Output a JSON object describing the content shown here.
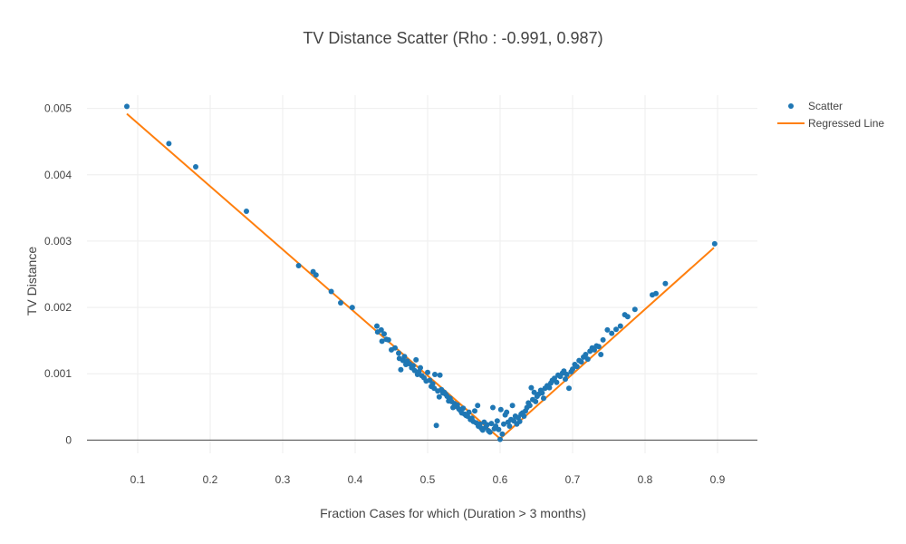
{
  "chart_data": {
    "type": "scatter",
    "title": "TV Distance Scatter  (Rho : -0.991, 0.987)",
    "xlabel": "Fraction Cases for which (Duration > 3 months)",
    "ylabel": "TV Distance",
    "xlim": [
      0.03,
      0.955
    ],
    "ylim": [
      -0.0002,
      0.0052
    ],
    "xticks": [
      0.1,
      0.2,
      0.3,
      0.4,
      0.5,
      0.6,
      0.7,
      0.8,
      0.9
    ],
    "xtick_labels": [
      "0.1",
      "0.2",
      "0.3",
      "0.4",
      "0.5",
      "0.6",
      "0.7",
      "0.8",
      "0.9"
    ],
    "yticks": [
      0,
      0.001,
      0.002,
      0.003,
      0.004,
      0.005
    ],
    "ytick_labels": [
      "0",
      "0.001",
      "0.002",
      "0.003",
      "0.004",
      "0.005"
    ],
    "grid": true,
    "legend_position": "top-right",
    "series": [
      {
        "name": "Scatter",
        "type": "scatter",
        "color": "#1f77b4",
        "points": [
          [
            0.085,
            0.00503
          ],
          [
            0.143,
            0.00447
          ],
          [
            0.18,
            0.00412
          ],
          [
            0.25,
            0.00345
          ],
          [
            0.322,
            0.00263
          ],
          [
            0.342,
            0.00254
          ],
          [
            0.346,
            0.00249
          ],
          [
            0.367,
            0.00224
          ],
          [
            0.38,
            0.00207
          ],
          [
            0.396,
            0.002
          ],
          [
            0.43,
            0.00172
          ],
          [
            0.431,
            0.00163
          ],
          [
            0.436,
            0.00166
          ],
          [
            0.437,
            0.00149
          ],
          [
            0.44,
            0.0016
          ],
          [
            0.443,
            0.00152
          ],
          [
            0.446,
            0.00151
          ],
          [
            0.45,
            0.00136
          ],
          [
            0.455,
            0.00139
          ],
          [
            0.46,
            0.00131
          ],
          [
            0.461,
            0.00123
          ],
          [
            0.463,
            0.00106
          ],
          [
            0.466,
            0.0012
          ],
          [
            0.468,
            0.00126
          ],
          [
            0.47,
            0.00114
          ],
          [
            0.472,
            0.00119
          ],
          [
            0.475,
            0.00115
          ],
          [
            0.478,
            0.00109
          ],
          [
            0.48,
            0.00112
          ],
          [
            0.482,
            0.00105
          ],
          [
            0.484,
            0.00121
          ],
          [
            0.486,
            0.00099
          ],
          [
            0.488,
            0.00103
          ],
          [
            0.49,
            0.00109
          ],
          [
            0.492,
            0.00097
          ],
          [
            0.495,
            0.00094
          ],
          [
            0.498,
            0.00089
          ],
          [
            0.5,
            0.00102
          ],
          [
            0.503,
            0.0009
          ],
          [
            0.505,
            0.00081
          ],
          [
            0.507,
            0.00085
          ],
          [
            0.509,
            0.00078
          ],
          [
            0.51,
            0.00099
          ],
          [
            0.512,
            0.00022
          ],
          [
            0.514,
            0.00074
          ],
          [
            0.516,
            0.00065
          ],
          [
            0.517,
            0.00098
          ],
          [
            0.519,
            0.00076
          ],
          [
            0.521,
            0.00071
          ],
          [
            0.523,
            0.00072
          ],
          [
            0.525,
            0.00069
          ],
          [
            0.527,
            0.00066
          ],
          [
            0.529,
            0.00059
          ],
          [
            0.531,
            0.00063
          ],
          [
            0.533,
            0.00058
          ],
          [
            0.535,
            0.00049
          ],
          [
            0.537,
            0.00055
          ],
          [
            0.539,
            0.00051
          ],
          [
            0.541,
            0.00053
          ],
          [
            0.543,
            0.00047
          ],
          [
            0.545,
            0.00045
          ],
          [
            0.547,
            0.00041
          ],
          [
            0.549,
            0.00048
          ],
          [
            0.551,
            0.00039
          ],
          [
            0.553,
            0.00037
          ],
          [
            0.555,
            0.00036
          ],
          [
            0.557,
            0.00042
          ],
          [
            0.559,
            0.00031
          ],
          [
            0.561,
            0.00033
          ],
          [
            0.563,
            0.00028
          ],
          [
            0.565,
            0.00044
          ],
          [
            0.567,
            0.00026
          ],
          [
            0.569,
            0.00052
          ],
          [
            0.57,
            0.00021
          ],
          [
            0.572,
            0.00024
          ],
          [
            0.574,
            0.00018
          ],
          [
            0.576,
            0.00015
          ],
          [
            0.578,
            0.00027
          ],
          [
            0.58,
            0.00019
          ],
          [
            0.582,
            0.00023
          ],
          [
            0.584,
            0.00014
          ],
          [
            0.586,
            0.00012
          ],
          [
            0.588,
            0.00025
          ],
          [
            0.59,
            0.00049
          ],
          [
            0.592,
            0.00017
          ],
          [
            0.594,
            0.00021
          ],
          [
            0.596,
            0.00029
          ],
          [
            0.598,
            0.00016
          ],
          [
            0.6,
            1e-05
          ],
          [
            0.601,
            0.00046
          ],
          [
            0.603,
            9e-05
          ],
          [
            0.605,
            0.00024
          ],
          [
            0.607,
            0.00038
          ],
          [
            0.609,
            0.00042
          ],
          [
            0.611,
            0.00027
          ],
          [
            0.613,
            0.00021
          ],
          [
            0.615,
            0.00031
          ],
          [
            0.617,
            0.00052
          ],
          [
            0.619,
            0.00029
          ],
          [
            0.621,
            0.00036
          ],
          [
            0.623,
            0.00024
          ],
          [
            0.625,
            0.00034
          ],
          [
            0.627,
            0.00028
          ],
          [
            0.629,
            0.00039
          ],
          [
            0.631,
            0.00041
          ],
          [
            0.633,
            0.00036
          ],
          [
            0.635,
            0.00044
          ],
          [
            0.637,
            0.00049
          ],
          [
            0.639,
            0.00056
          ],
          [
            0.641,
            0.00052
          ],
          [
            0.643,
            0.00079
          ],
          [
            0.645,
            0.00061
          ],
          [
            0.647,
            0.00072
          ],
          [
            0.649,
            0.00058
          ],
          [
            0.651,
            0.00066
          ],
          [
            0.653,
            0.00069
          ],
          [
            0.656,
            0.00075
          ],
          [
            0.658,
            0.00071
          ],
          [
            0.66,
            0.00063
          ],
          [
            0.662,
            0.00078
          ],
          [
            0.665,
            0.00082
          ],
          [
            0.668,
            0.00079
          ],
          [
            0.67,
            0.00086
          ],
          [
            0.672,
            0.0009
          ],
          [
            0.675,
            0.00093
          ],
          [
            0.678,
            0.00087
          ],
          [
            0.68,
            0.00098
          ],
          [
            0.683,
            0.00096
          ],
          [
            0.686,
            0.00101
          ],
          [
            0.688,
            0.00104
          ],
          [
            0.69,
            0.00092
          ],
          [
            0.692,
            0.00099
          ],
          [
            0.695,
            0.00078
          ],
          [
            0.698,
            0.00103
          ],
          [
            0.7,
            0.00107
          ],
          [
            0.703,
            0.00114
          ],
          [
            0.706,
            0.00111
          ],
          [
            0.709,
            0.0012
          ],
          [
            0.712,
            0.00118
          ],
          [
            0.715,
            0.00125
          ],
          [
            0.718,
            0.00129
          ],
          [
            0.721,
            0.00122
          ],
          [
            0.724,
            0.00134
          ],
          [
            0.727,
            0.00139
          ],
          [
            0.73,
            0.00136
          ],
          [
            0.733,
            0.00142
          ],
          [
            0.736,
            0.00141
          ],
          [
            0.739,
            0.00129
          ],
          [
            0.742,
            0.00151
          ],
          [
            0.748,
            0.00166
          ],
          [
            0.754,
            0.00161
          ],
          [
            0.76,
            0.00167
          ],
          [
            0.766,
            0.00172
          ],
          [
            0.772,
            0.00189
          ],
          [
            0.776,
            0.00186
          ],
          [
            0.786,
            0.00197
          ],
          [
            0.81,
            0.00219
          ],
          [
            0.815,
            0.00221
          ],
          [
            0.828,
            0.00236
          ],
          [
            0.896,
            0.00296
          ]
        ]
      },
      {
        "name": "Regressed Line",
        "type": "line",
        "color": "#ff7f0e",
        "points": [
          [
            0.085,
            0.00492
          ],
          [
            0.6,
            2e-05
          ],
          [
            0.895,
            0.0029
          ]
        ]
      }
    ]
  }
}
